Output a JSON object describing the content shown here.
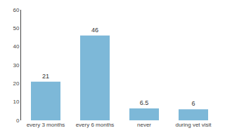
{
  "chart_data": {
    "type": "bar",
    "categories": [
      "every 3 months",
      "every 6 months",
      "never",
      "during vet visit"
    ],
    "values": [
      21,
      46,
      6.5,
      6
    ],
    "color": "#7db8d8",
    "ylim": [
      0,
      60
    ],
    "yticks": [
      0,
      10,
      20,
      30,
      40,
      50,
      60
    ],
    "grid": false,
    "data_labels": true
  }
}
